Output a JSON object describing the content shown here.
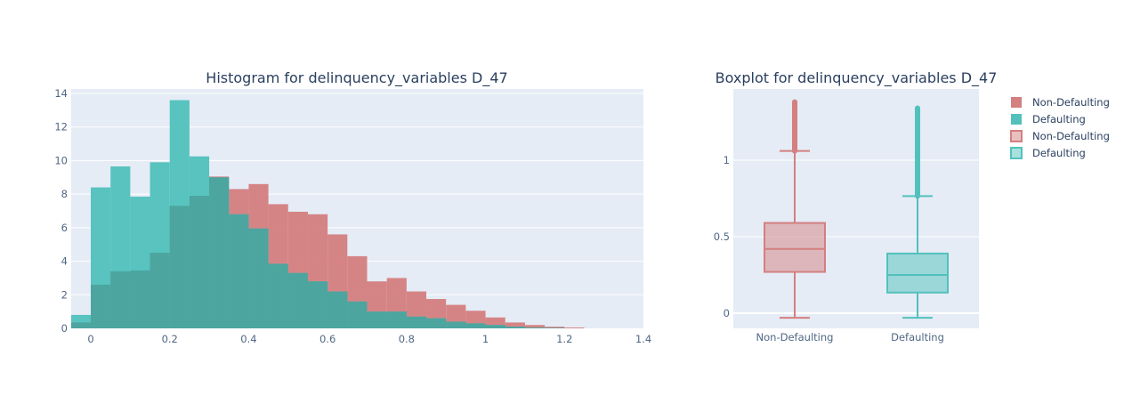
{
  "histogram": {
    "title": "Histogram for delinquency_variables D_47",
    "x_ticks": [
      "0",
      "0.2",
      "0.4",
      "0.6",
      "0.8",
      "1",
      "1.2",
      "1.4"
    ],
    "y_ticks": [
      "0",
      "2",
      "4",
      "6",
      "8",
      "10",
      "12",
      "14"
    ]
  },
  "boxplot": {
    "title": "Boxplot for delinquency_variables D_47",
    "x_ticks": [
      "Non-Defaulting",
      "Defaulting"
    ],
    "y_ticks": [
      "0",
      "0.5",
      "1"
    ]
  },
  "legend": {
    "items": [
      {
        "label": "Non-Defaulting",
        "style": "hist",
        "color": "#d47f80"
      },
      {
        "label": "Defaulting",
        "style": "hist",
        "color": "#52c1bc"
      },
      {
        "label": "Non-Defaulting",
        "style": "box",
        "color": "#d47f80"
      },
      {
        "label": "Defaulting",
        "style": "box",
        "color": "#52c1bc"
      }
    ]
  },
  "colors": {
    "non_defaulting": "#d47f80",
    "defaulting": "#52c1bc",
    "overlap": "#4ca59e",
    "plot_bg": "#e5ecf6",
    "grid": "#ffffff"
  },
  "chart_data": [
    {
      "type": "histogram",
      "title": "Histogram for delinquency_variables D_47",
      "xlabel": "",
      "ylabel": "",
      "xlim": [
        -0.05,
        1.4
      ],
      "ylim": [
        0,
        14.5
      ],
      "barmode": "overlay",
      "bin_width": 0.05,
      "bin_starts": [
        -0.05,
        0.0,
        0.05,
        0.1,
        0.15,
        0.2,
        0.25,
        0.3,
        0.35,
        0.4,
        0.45,
        0.5,
        0.55,
        0.6,
        0.65,
        0.7,
        0.75,
        0.8,
        0.85,
        0.9,
        0.95,
        1.0,
        1.05,
        1.1,
        1.15,
        1.2
      ],
      "series": [
        {
          "name": "Non-Defaulting",
          "color": "#d47f80",
          "values": [
            0.35,
            2.6,
            3.4,
            3.45,
            4.5,
            7.3,
            7.9,
            9.05,
            8.3,
            8.6,
            7.4,
            6.95,
            6.8,
            5.6,
            4.3,
            2.8,
            3.0,
            2.2,
            1.75,
            1.4,
            1.05,
            0.65,
            0.35,
            0.2,
            0.1,
            0.05
          ]
        },
        {
          "name": "Defaulting",
          "color": "#52c1bc",
          "values": [
            0.8,
            8.4,
            9.65,
            7.85,
            9.9,
            13.6,
            10.25,
            9.0,
            6.8,
            5.95,
            3.85,
            3.3,
            2.8,
            2.2,
            1.6,
            1.0,
            1.0,
            0.7,
            0.6,
            0.4,
            0.3,
            0.2,
            0.1,
            0.05,
            0.03,
            0.0
          ]
        }
      ],
      "grid": true
    },
    {
      "type": "box",
      "title": "Boxplot for delinquency_variables D_47",
      "categories": [
        "Non-Defaulting",
        "Defaulting"
      ],
      "ylim": [
        -0.1,
        1.45
      ],
      "series": [
        {
          "name": "Non-Defaulting",
          "color": "#d47f80",
          "min": -0.03,
          "q1": 0.27,
          "median": 0.42,
          "q3": 0.59,
          "upper_fence": 1.06,
          "outlier_max": 1.38
        },
        {
          "name": "Defaulting",
          "color": "#52c1bc",
          "min": -0.03,
          "q1": 0.135,
          "median": 0.25,
          "q3": 0.39,
          "upper_fence": 0.765,
          "outlier_max": 1.34
        }
      ],
      "grid": true
    }
  ]
}
